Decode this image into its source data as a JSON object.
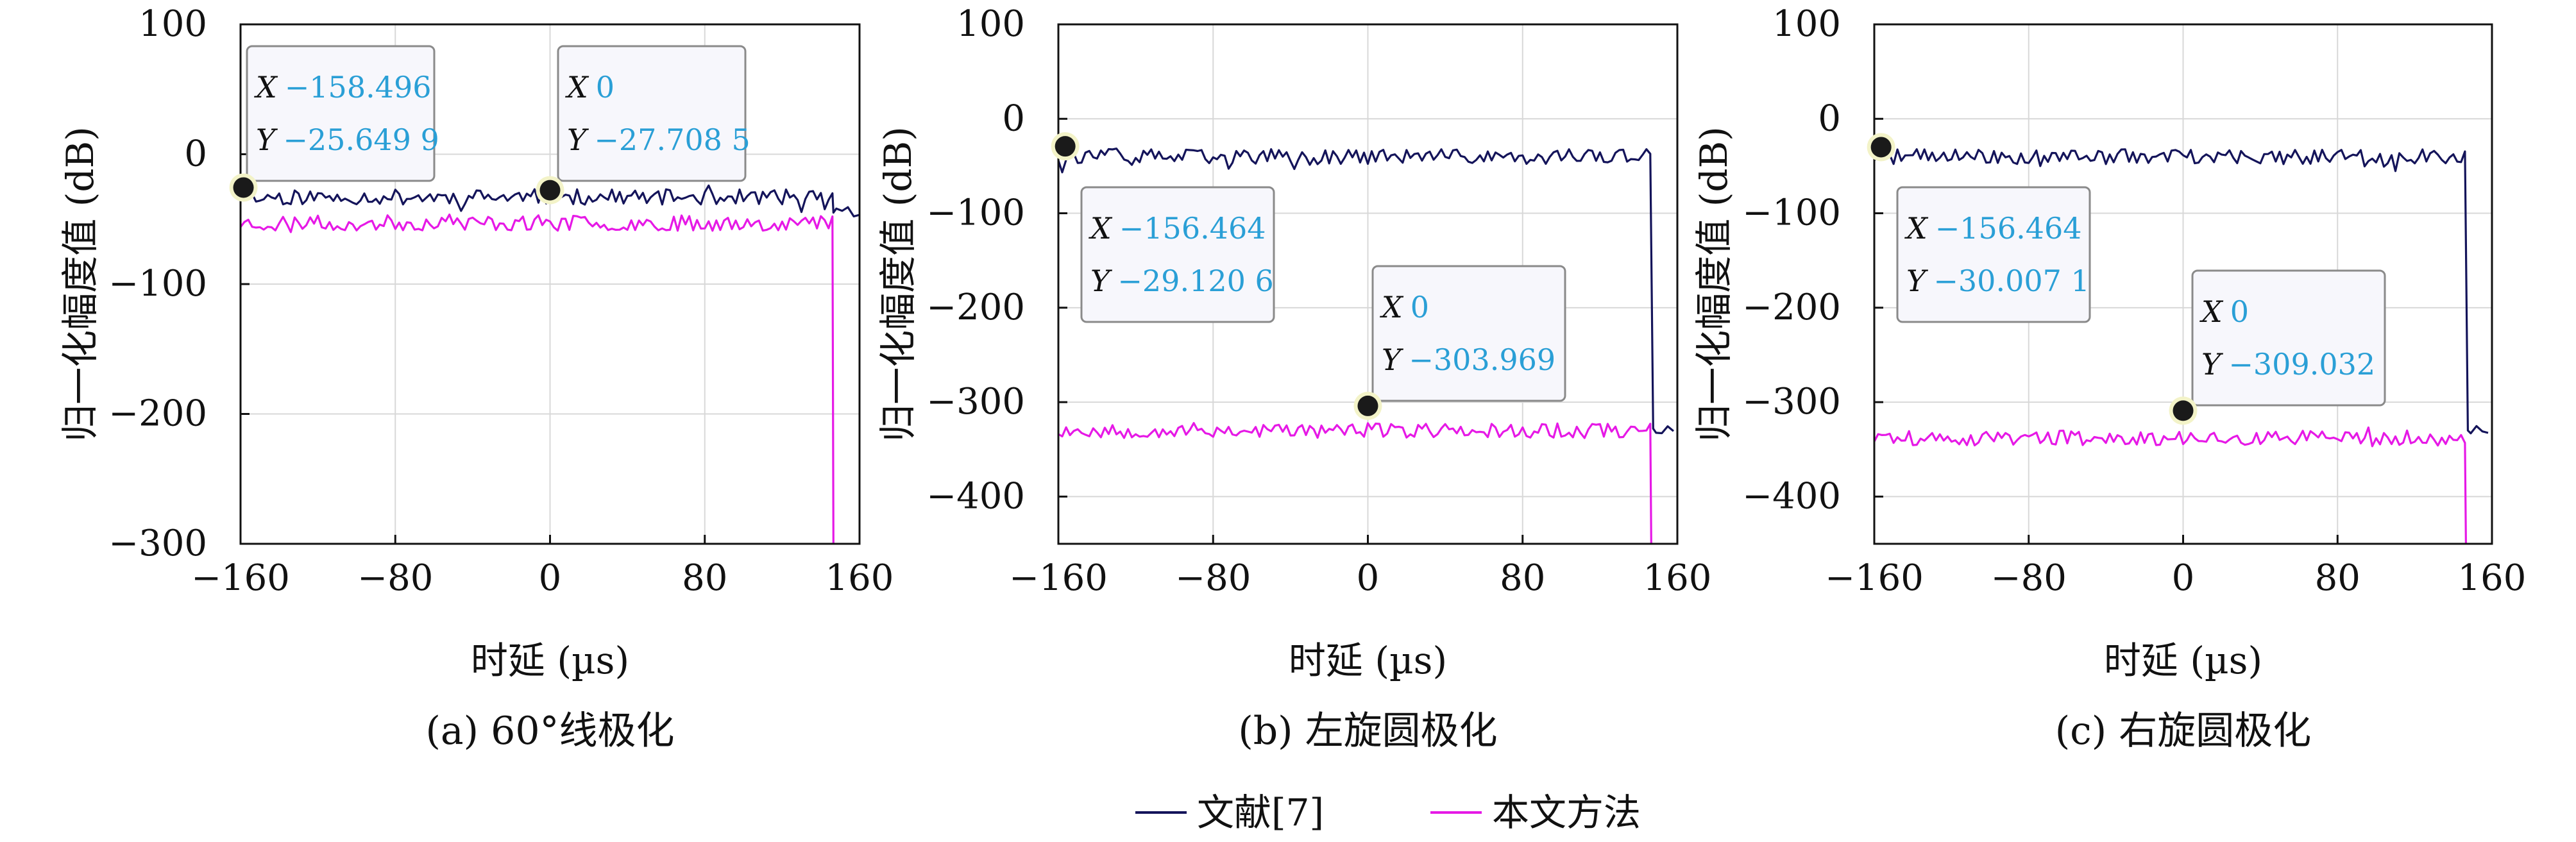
{
  "chart_data": [
    {
      "id": "a",
      "type": "line",
      "caption": "(a) 60°线极化",
      "xlabel": "时延 (µs)",
      "ylabel": "归一化幅度值 (dB)",
      "xlim": [
        -160,
        160
      ],
      "ylim": [
        -300,
        100
      ],
      "xticks": [
        -160,
        -80,
        0,
        80,
        160
      ],
      "xtick_labels": [
        "−160",
        "−80",
        "0",
        "80",
        "160"
      ],
      "yticks": [
        100,
        0,
        -100,
        -200,
        -300
      ],
      "ytick_labels": [
        "100",
        "0",
        "−100",
        "−200",
        "−300"
      ],
      "grid": true,
      "series": [
        {
          "name": "文献[7]",
          "color": "#14145a",
          "base": -33,
          "amp": 6,
          "seed": 11,
          "x_end": 146,
          "end_to": -45
        },
        {
          "name": "本文方法",
          "color": "#e619e6",
          "base": -53,
          "amp": 6,
          "seed": 23,
          "x_end": 146,
          "end_to": -300
        }
      ],
      "datatips": [
        {
          "x": -158.496,
          "y": -25.6499,
          "x_label": "X",
          "x_text": "−158.496",
          "y_label": "Y",
          "y_text": "−25.649 9"
        },
        {
          "x": 0,
          "y": -27.7085,
          "x_label": "X",
          "x_text": "0",
          "y_label": "Y",
          "y_text": "−27.708 5"
        }
      ]
    },
    {
      "id": "b",
      "type": "line",
      "caption": "(b) 左旋圆极化",
      "xlabel": "时延 (µs)",
      "ylabel": "归一化幅度值 (dB)",
      "xlim": [
        -160,
        160
      ],
      "ylim": [
        -450,
        100
      ],
      "xticks": [
        -160,
        -80,
        0,
        80,
        160
      ],
      "xtick_labels": [
        "−160",
        "−80",
        "0",
        "80",
        "160"
      ],
      "yticks": [
        100,
        0,
        -100,
        -200,
        -300,
        -400
      ],
      "ytick_labels": [
        "100",
        "0",
        "−100",
        "−200",
        "−300",
        "−400"
      ],
      "grid": true,
      "series": [
        {
          "name": "文献[7]",
          "color": "#14145a",
          "base": -40,
          "amp": 8,
          "seed": 37,
          "x_end": 147,
          "end_to": -328
        },
        {
          "name": "本文方法",
          "color": "#e619e6",
          "base": -330,
          "amp": 8,
          "seed": 53,
          "x_end": 146,
          "end_to": -450
        }
      ],
      "datatips": [
        {
          "x": -156.464,
          "y": -29.1206,
          "x_label": "X",
          "x_text": "−156.464",
          "y_label": "Y",
          "y_text": "−29.120 6"
        },
        {
          "x": 0,
          "y": -303.969,
          "x_label": "X",
          "x_text": "0",
          "y_label": "Y",
          "y_text": "−303.969"
        }
      ]
    },
    {
      "id": "c",
      "type": "line",
      "caption": "(c) 右旋圆极化",
      "xlabel": "时延 (µs)",
      "ylabel": "归一化幅度值 (dB)",
      "xlim": [
        -160,
        160
      ],
      "ylim": [
        -450,
        100
      ],
      "xticks": [
        -160,
        -80,
        0,
        80,
        160
      ],
      "xtick_labels": [
        "−160",
        "−80",
        "0",
        "80",
        "160"
      ],
      "yticks": [
        100,
        0,
        -100,
        -200,
        -300,
        -400
      ],
      "ytick_labels": [
        "100",
        "0",
        "−100",
        "−200",
        "−300",
        "−400"
      ],
      "grid": true,
      "series": [
        {
          "name": "文献[7]",
          "color": "#14145a",
          "base": -40,
          "amp": 8,
          "seed": 71,
          "x_end": 147,
          "end_to": -330
        },
        {
          "name": "本文方法",
          "color": "#e619e6",
          "base": -338,
          "amp": 8,
          "seed": 89,
          "x_end": 146,
          "end_to": -450
        }
      ],
      "datatips": [
        {
          "x": -156.464,
          "y": -30.0071,
          "x_label": "X",
          "x_text": "−156.464",
          "y_label": "Y",
          "y_text": "−30.007 1"
        },
        {
          "x": 0,
          "y": -309.032,
          "x_label": "X",
          "x_text": "0",
          "y_label": "Y",
          "y_text": "−309.032"
        }
      ]
    }
  ],
  "legend": {
    "position": "bottom-center",
    "entries": [
      {
        "label": "文献[7]",
        "color": "#14145a"
      },
      {
        "label": "本文方法",
        "color": "#e619e6"
      }
    ]
  },
  "colors": {
    "grid": "#d8d8d8",
    "axis": "#111111",
    "tip_value": "#2a9fd6",
    "tip_bg": "#f7f7fc",
    "tip_border": "#8a8a8a",
    "marker": "#1a1a1a",
    "marker_halo": "#f3f3c8"
  }
}
